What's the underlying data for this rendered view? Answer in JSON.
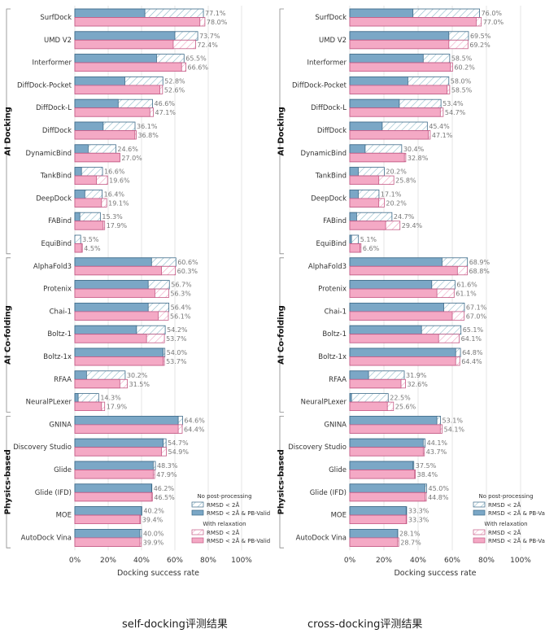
{
  "groups": [
    "AI Docking",
    "AI Co-folding",
    "Physics-based"
  ],
  "colors": {
    "blue_fill": "#7ba7c6",
    "blue_edge": "#3d6a88",
    "pink_fill": "#f4a9c5",
    "pink_edge": "#c45a85",
    "hatch_blue": "#8bb8c8",
    "hatch_pink": "#f0a0c0",
    "grid": "#e4e4e4",
    "text": "#333333",
    "value_text": "#777777"
  },
  "legend": {
    "title_none": "No post-processing",
    "title_relax": "With relaxation",
    "rmsd": "RMSD < 2Å",
    "rmsd_pb": "RMSD < 2Å & PB-Valid"
  },
  "captions": {
    "left": "self-docking评测结果",
    "right": "cross-docking评测结果"
  },
  "chart_data": [
    {
      "type": "bar",
      "orientation": "horizontal",
      "title": "self-docking评测结果",
      "xlabel": "Docking success rate",
      "xlim": [
        0,
        100
      ],
      "xticks": [
        "0%",
        "20%",
        "40%",
        "60%",
        "80%",
        "100%"
      ],
      "categories": [
        "SurfDock",
        "UMD V2",
        "Interformer",
        "DiffDock-Pocket",
        "DiffDock-L",
        "DiffDock",
        "DynamicBind",
        "TankBind",
        "DeepDock",
        "FABind",
        "EquiBind",
        "AlphaFold3",
        "Protenix",
        "Chai-1",
        "Boltz-1",
        "Boltz-1x",
        "RFAA",
        "NeuralPLexer",
        "GNINA",
        "Discovery Studio",
        "Glide",
        "Glide (IFD)",
        "MOE",
        "AutoDock Vina"
      ],
      "category_groups": [
        "AI Docking",
        "AI Docking",
        "AI Docking",
        "AI Docking",
        "AI Docking",
        "AI Docking",
        "AI Docking",
        "AI Docking",
        "AI Docking",
        "AI Docking",
        "AI Docking",
        "AI Co-folding",
        "AI Co-folding",
        "AI Co-folding",
        "AI Co-folding",
        "AI Co-folding",
        "AI Co-folding",
        "AI Co-folding",
        "Physics-based",
        "Physics-based",
        "Physics-based",
        "Physics-based",
        "Physics-based",
        "Physics-based"
      ],
      "series": [
        {
          "name": "No post-processing: RMSD < 2Å",
          "values": [
            77.1,
            73.7,
            65.5,
            52.8,
            46.6,
            36.1,
            24.6,
            16.6,
            16.4,
            15.3,
            3.5,
            60.6,
            56.7,
            56.4,
            54.2,
            54.0,
            30.2,
            14.3,
            64.6,
            54.7,
            48.3,
            46.2,
            40.2,
            40.0
          ]
        },
        {
          "name": "No post-processing: RMSD < 2Å & PB-Valid",
          "values": [
            42,
            60,
            49,
            30,
            26,
            17,
            8,
            4,
            6,
            3,
            0,
            46,
            44,
            44,
            37,
            53,
            7,
            2,
            62,
            53,
            47,
            46,
            40,
            39
          ]
        },
        {
          "name": "With relaxation: RMSD < 2Å",
          "values": [
            78.0,
            72.4,
            66.6,
            52.6,
            47.1,
            36.8,
            27.0,
            19.6,
            19.1,
            17.9,
            4.5,
            60.3,
            56.3,
            56.1,
            53.7,
            53.7,
            31.5,
            17.9,
            64.4,
            54.9,
            47.9,
            46.5,
            39.4,
            39.9
          ]
        },
        {
          "name": "With relaxation: RMSD < 2Å & PB-Valid",
          "values": [
            75,
            59,
            64,
            51,
            45,
            36,
            27,
            13,
            16,
            17,
            4,
            52,
            48,
            50,
            43,
            53,
            27,
            16,
            62,
            52,
            47,
            46,
            39,
            39
          ]
        }
      ],
      "labels_none": [
        "77.1%",
        "73.7%",
        "65.5%",
        "52.8%",
        "46.6%",
        "36.1%",
        "24.6%",
        "16.6%",
        "16.4%",
        "15.3%",
        "3.5%",
        "60.6%",
        "56.7%",
        "56.4%",
        "54.2%",
        "54.0%",
        "30.2%",
        "14.3%",
        "64.6%",
        "54.7%",
        "48.3%",
        "46.2%",
        "40.2%",
        "40.0%"
      ],
      "labels_relax": [
        "78.0%",
        "72.4%",
        "66.6%",
        "52.6%",
        "47.1%",
        "36.8%",
        "27.0%",
        "19.6%",
        "19.1%",
        "17.9%",
        "4.5%",
        "60.3%",
        "56.3%",
        "56.1%",
        "53.7%",
        "53.7%",
        "31.5%",
        "17.9%",
        "64.4%",
        "54.9%",
        "47.9%",
        "46.5%",
        "39.4%",
        "39.9%"
      ]
    },
    {
      "type": "bar",
      "orientation": "horizontal",
      "title": "cross-docking评测结果",
      "xlabel": "Docking success rate",
      "xlim": [
        0,
        100
      ],
      "xticks": [
        "0%",
        "20%",
        "40%",
        "60%",
        "80%",
        "100%"
      ],
      "categories": [
        "SurfDock",
        "UMD V2",
        "Interformer",
        "DiffDock-Pocket",
        "DiffDock-L",
        "DiffDock",
        "DynamicBind",
        "TankBind",
        "DeepDock",
        "FABind",
        "EquiBind",
        "AlphaFold3",
        "Protenix",
        "Chai-1",
        "Boltz-1",
        "Boltz-1x",
        "RFAA",
        "NeuralPLexer",
        "GNINA",
        "Discovery Studio",
        "Glide",
        "Glide (IFD)",
        "MOE",
        "AutoDock Vina"
      ],
      "category_groups": [
        "AI Docking",
        "AI Docking",
        "AI Docking",
        "AI Docking",
        "AI Docking",
        "AI Docking",
        "AI Docking",
        "AI Docking",
        "AI Docking",
        "AI Docking",
        "AI Docking",
        "AI Co-folding",
        "AI Co-folding",
        "AI Co-folding",
        "AI Co-folding",
        "AI Co-folding",
        "AI Co-folding",
        "AI Co-folding",
        "Physics-based",
        "Physics-based",
        "Physics-based",
        "Physics-based",
        "Physics-based",
        "Physics-based"
      ],
      "series": [
        {
          "name": "No post-processing: RMSD < 2Å",
          "values": [
            76.0,
            69.5,
            58.5,
            58.0,
            53.4,
            45.4,
            30.4,
            20.2,
            17.1,
            24.7,
            5.1,
            68.9,
            61.6,
            67.1,
            65.1,
            64.8,
            31.9,
            22.5,
            53.1,
            44.1,
            37.5,
            45.0,
            33.3,
            28.1
          ]
        },
        {
          "name": "No post-processing: RMSD < 2Å & PB-Valid",
          "values": [
            37,
            58,
            43,
            34,
            29,
            19,
            9,
            5,
            5,
            4,
            1,
            54,
            48,
            55,
            42,
            62,
            11,
            1,
            51,
            43,
            37,
            44,
            33,
            28
          ]
        },
        {
          "name": "With relaxation: RMSD < 2Å",
          "values": [
            77.0,
            69.2,
            60.2,
            58.5,
            54.7,
            47.1,
            32.8,
            25.8,
            20.2,
            29.4,
            6.6,
            68.8,
            61.1,
            67.0,
            64.1,
            64.4,
            32.6,
            25.6,
            54.1,
            43.7,
            38.4,
            44.8,
            33.3,
            28.7
          ]
        },
        {
          "name": "With relaxation: RMSD < 2Å & PB-Valid",
          "values": [
            74,
            58,
            59,
            57,
            53,
            46,
            32,
            17,
            17,
            21,
            6,
            63,
            51,
            60,
            52,
            62,
            30,
            22,
            53,
            43,
            38,
            44,
            33,
            28
          ]
        }
      ],
      "labels_none": [
        "76.0%",
        "69.5%",
        "58.5%",
        "58.0%",
        "53.4%",
        "45.4%",
        "30.4%",
        "20.2%",
        "17.1%",
        "24.7%",
        "5.1%",
        "68.9%",
        "61.6%",
        "67.1%",
        "65.1%",
        "64.8%",
        "31.9%",
        "22.5%",
        "53.1%",
        "44.1%",
        "37.5%",
        "45.0%",
        "33.3%",
        "28.1%"
      ],
      "labels_relax": [
        "77.0%",
        "69.2%",
        "60.2%",
        "58.5%",
        "54.7%",
        "47.1%",
        "32.8%",
        "25.8%",
        "20.2%",
        "29.4%",
        "6.6%",
        "68.8%",
        "61.1%",
        "67.0%",
        "64.1%",
        "64.4%",
        "32.6%",
        "25.6%",
        "54.1%",
        "43.7%",
        "38.4%",
        "44.8%",
        "33.3%",
        "28.7%"
      ]
    }
  ]
}
